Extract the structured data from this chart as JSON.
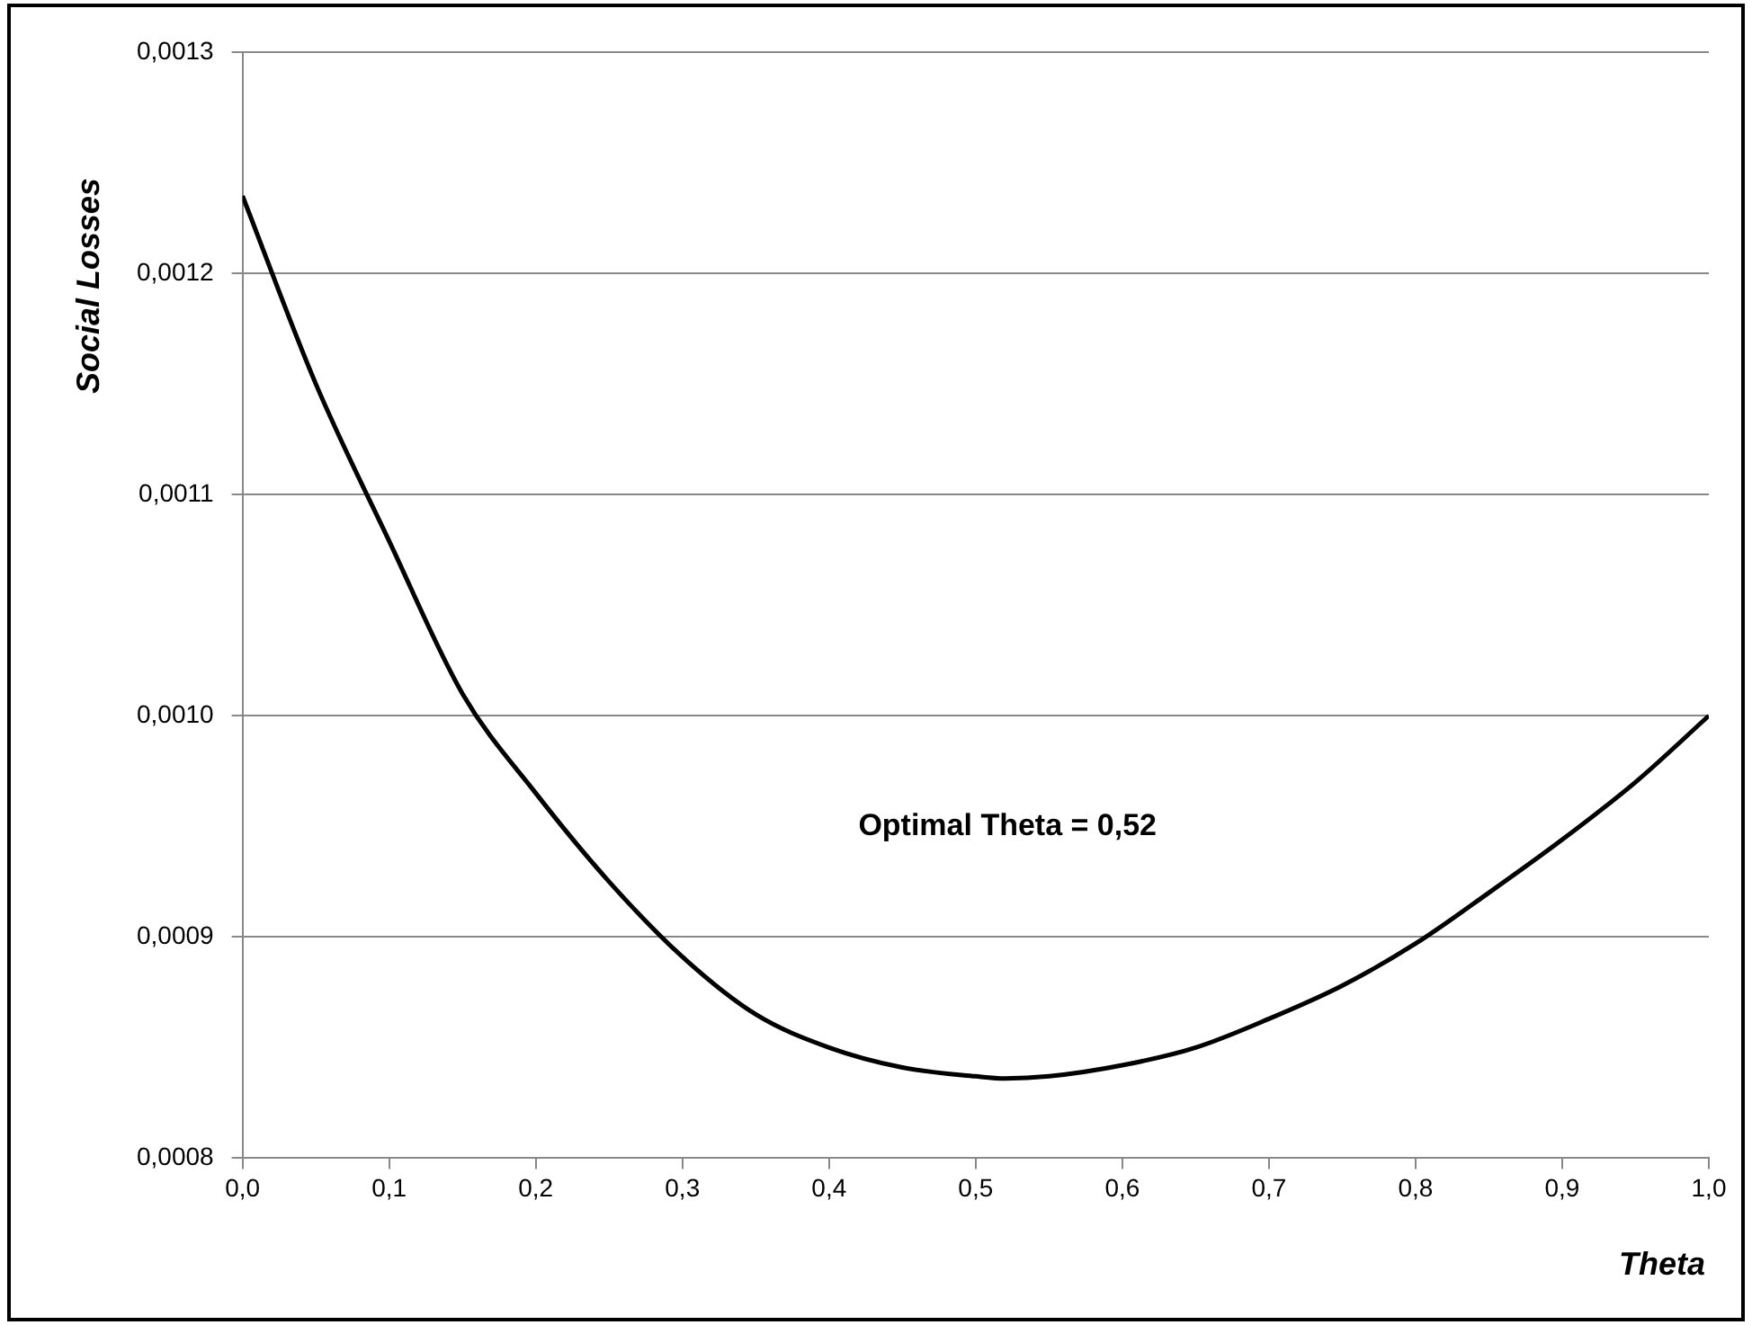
{
  "chart_data": {
    "type": "line",
    "xlabel": "Theta",
    "ylabel": "Social Losses",
    "annotations": [
      "Optimal Theta = 0,52"
    ],
    "x": [
      0,
      0.05,
      0.1,
      0.15,
      0.2,
      0.25,
      0.3,
      0.35,
      0.4,
      0.45,
      0.5,
      0.52,
      0.55,
      0.6,
      0.65,
      0.7,
      0.75,
      0.8,
      0.85,
      0.9,
      0.95,
      1.0
    ],
    "series": [
      {
        "color": "#000000",
        "values": [
          0.001235,
          0.00115,
          0.001079,
          0.00101,
          0.000965,
          0.000925,
          0.000891,
          0.000865,
          0.00085,
          0.000841,
          0.000837,
          0.000836,
          0.000837,
          0.000842,
          0.00085,
          0.000863,
          0.000878,
          0.000897,
          0.00092,
          0.000944,
          0.00097,
          0.001
        ]
      }
    ],
    "xlim": [
      0,
      1
    ],
    "xticks": [
      {
        "value": 0,
        "label": "0,0"
      },
      {
        "value": 0.1,
        "label": "0,1"
      },
      {
        "value": 0.2,
        "label": "0,2"
      },
      {
        "value": 0.3,
        "label": "0,3"
      },
      {
        "value": 0.4,
        "label": "0,4"
      },
      {
        "value": 0.5,
        "label": "0,5"
      },
      {
        "value": 0.6,
        "label": "0,6"
      },
      {
        "value": 0.7,
        "label": "0,7"
      },
      {
        "value": 0.8,
        "label": "0,8"
      },
      {
        "value": 0.9,
        "label": "0,9"
      },
      {
        "value": 1,
        "label": "1,0"
      }
    ],
    "ylim": [
      0.0008,
      0.0013
    ],
    "yticks": [
      {
        "value": 0.0008,
        "label": "0,0008"
      },
      {
        "value": 0.0009,
        "label": "0,0009"
      },
      {
        "value": 0.001,
        "label": "0,0010"
      },
      {
        "value": 0.0011,
        "label": "0,0011"
      },
      {
        "value": 0.0012,
        "label": "0,0012"
      },
      {
        "value": 0.0013,
        "label": "0,0013"
      }
    ],
    "grid": "y",
    "legend": false,
    "marker": "none",
    "line_style": "solid"
  }
}
